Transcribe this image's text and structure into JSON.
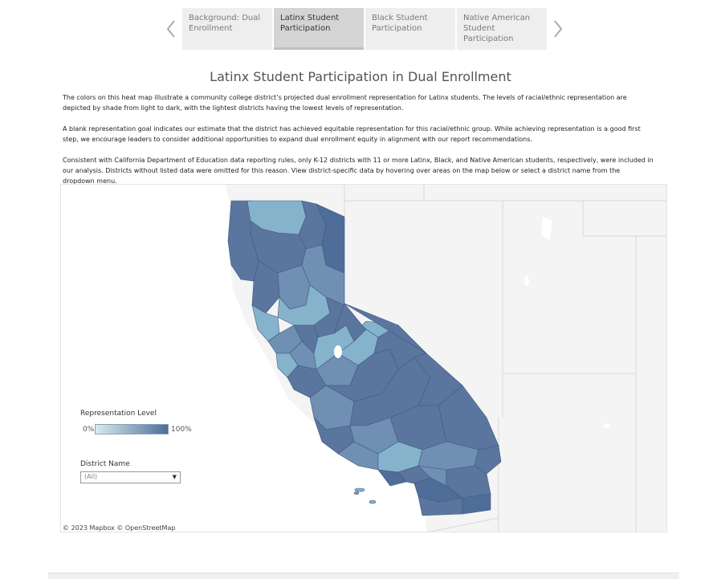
{
  "story_tabs": [
    {
      "label": "Background: Dual Enrollment",
      "active": false
    },
    {
      "label": "Latinx Student Participation",
      "active": true
    },
    {
      "label": "Black Student Participation",
      "active": false
    },
    {
      "label": "Native American Student Participation",
      "active": false
    }
  ],
  "title": "Latinx Student Participation in Dual Enrollment",
  "paragraphs": [
    "The colors on this heat map illustrate a community college district’s projected dual enrollment representation for Latinx students. The levels of racial/ethnic representation are depicted by shade from light to dark, with the lightest districts having the lowest levels of representation.",
    "A blank representation goal indicates our estimate that the district has achieved equitable representation for this racial/ethnic group. While achieving representation is a good first step, we encourage leaders to consider additional opportunities to expand dual enrollment equity in alignment with our report recommendations.",
    "Consistent with California Department of Education data reporting rules, only K-12 districts with 11 or more Latinx, Black, and Native American students, respectively, were included in our analysis. Districts without listed data were omitted for this reason. View district-specific data by hovering over areas on the map below or select a district name from the dropdown menu."
  ],
  "legend": {
    "title": "Representation Level",
    "min_label": "0%",
    "max_label": "100%",
    "color_low": "#d8ecec",
    "color_high": "#4e6d99"
  },
  "filter": {
    "label": "District Name",
    "value": "(All)"
  },
  "attribution": "© 2023 Mapbox  © OpenStreetMap",
  "colors": {
    "dark": "#5b769e",
    "mid": "#6f8fb3",
    "light": "#86b3cc",
    "land": "#f4f4f4",
    "water": "#ffffff"
  }
}
